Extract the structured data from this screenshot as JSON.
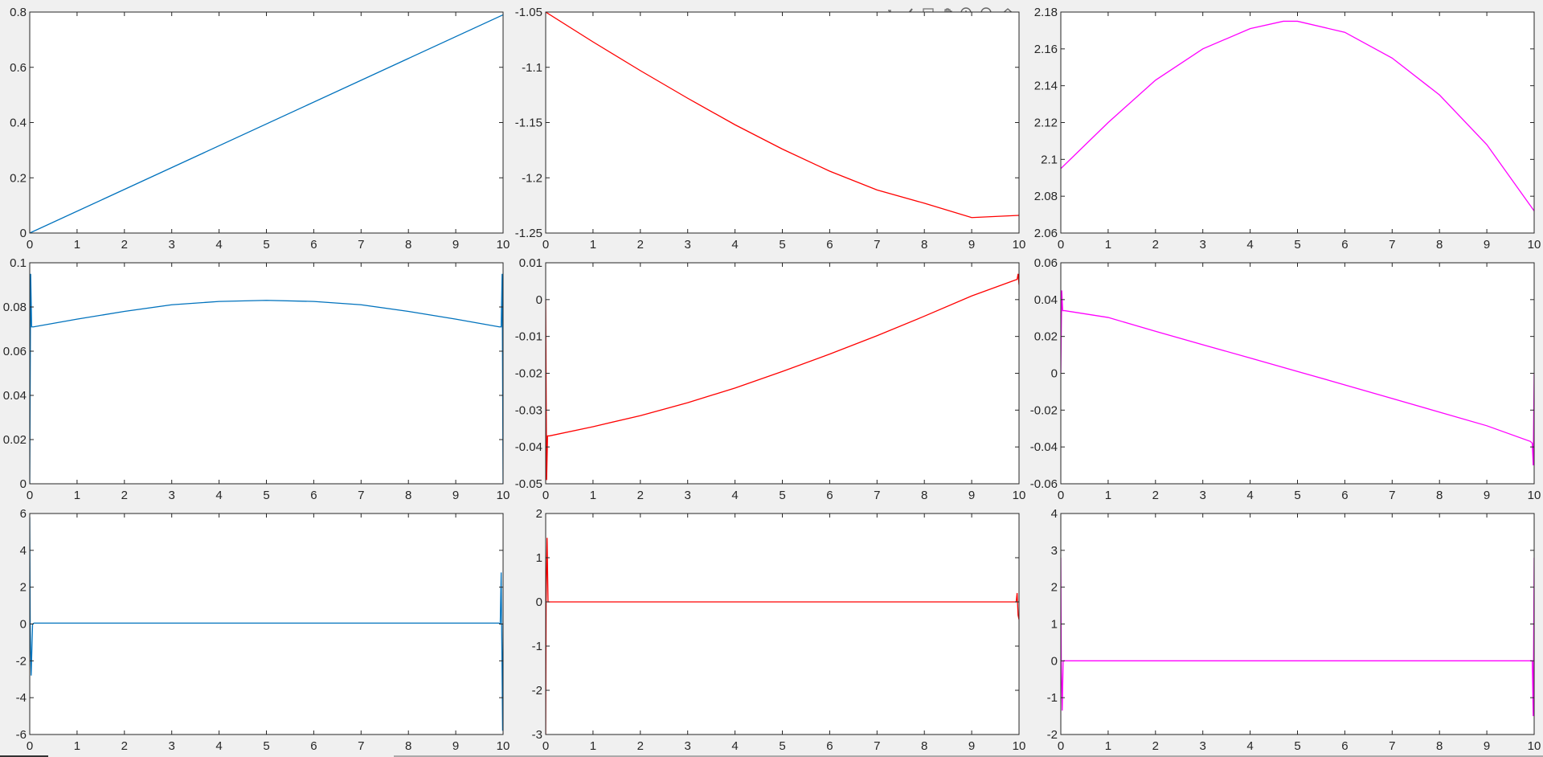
{
  "toolbar": {
    "items": [
      {
        "name": "export-icon"
      },
      {
        "name": "brush-icon"
      },
      {
        "name": "datatip-icon"
      },
      {
        "name": "pan-hand-icon"
      },
      {
        "name": "zoom-in-icon"
      },
      {
        "name": "zoom-out-icon"
      },
      {
        "name": "home-icon"
      }
    ]
  },
  "colors": {
    "blue": "#0072bd",
    "red": "#ff0000",
    "magenta": "#ff00ff",
    "axes": "#262626",
    "background": "#f0f0f0",
    "plot_area": "#ffffff"
  },
  "chart_data": [
    {
      "type": "line",
      "row": 1,
      "col": 1,
      "color": "#0072bd",
      "xlim": [
        0,
        10
      ],
      "ylim": [
        0,
        0.8
      ],
      "xticks": [
        0,
        1,
        2,
        3,
        4,
        5,
        6,
        7,
        8,
        9,
        10
      ],
      "xticklabels": [
        "0",
        "1",
        "2",
        "3",
        "4",
        "5",
        "6",
        "7",
        "8",
        "9",
        "10"
      ],
      "yticks": [
        0,
        0.2,
        0.4,
        0.6,
        0.8
      ],
      "yticklabels": [
        "0",
        "0.2",
        "0.4",
        "0.6",
        "0.8"
      ],
      "x": [
        0,
        10
      ],
      "y": [
        0,
        0.79
      ]
    },
    {
      "type": "line",
      "row": 1,
      "col": 2,
      "color": "#ff0000",
      "xlim": [
        0,
        10
      ],
      "ylim": [
        -1.25,
        -1.05
      ],
      "xticks": [
        0,
        1,
        2,
        3,
        4,
        5,
        6,
        7,
        8,
        9,
        10
      ],
      "xticklabels": [
        "0",
        "1",
        "2",
        "3",
        "4",
        "5",
        "6",
        "7",
        "8",
        "9",
        "10"
      ],
      "yticks": [
        -1.25,
        -1.2,
        -1.15,
        -1.1,
        -1.05
      ],
      "yticklabels": [
        "-1.25",
        "-1.2",
        "-1.15",
        "-1.1",
        "-1.05"
      ],
      "x": [
        0,
        1,
        2,
        3,
        4,
        5,
        6,
        7,
        8,
        9,
        10
      ],
      "y": [
        -1.05,
        -1.077,
        -1.103,
        -1.128,
        -1.152,
        -1.174,
        -1.194,
        -1.211,
        -1.223,
        -1.236,
        -1.234
      ]
    },
    {
      "type": "line",
      "row": 1,
      "col": 3,
      "color": "#ff00ff",
      "xlim": [
        0,
        10
      ],
      "ylim": [
        2.06,
        2.18
      ],
      "xticks": [
        0,
        1,
        2,
        3,
        4,
        5,
        6,
        7,
        8,
        9,
        10
      ],
      "xticklabels": [
        "0",
        "1",
        "2",
        "3",
        "4",
        "5",
        "6",
        "7",
        "8",
        "9",
        "10"
      ],
      "yticks": [
        2.06,
        2.08,
        2.1,
        2.12,
        2.14,
        2.16,
        2.18
      ],
      "yticklabels": [
        "2.06",
        "2.08",
        "2.1",
        "2.12",
        "2.14",
        "2.16",
        "2.18"
      ],
      "x": [
        0,
        1,
        2,
        3,
        4,
        4.7,
        5,
        6,
        7,
        8,
        9,
        10
      ],
      "y": [
        2.095,
        2.12,
        2.143,
        2.16,
        2.171,
        2.175,
        2.175,
        2.169,
        2.155,
        2.135,
        2.108,
        2.072
      ]
    },
    {
      "type": "line",
      "row": 2,
      "col": 1,
      "color": "#0072bd",
      "xlim": [
        0,
        10
      ],
      "ylim": [
        0,
        0.1
      ],
      "xticks": [
        0,
        1,
        2,
        3,
        4,
        5,
        6,
        7,
        8,
        9,
        10
      ],
      "xticklabels": [
        "0",
        "1",
        "2",
        "3",
        "4",
        "5",
        "6",
        "7",
        "8",
        "9",
        "10"
      ],
      "yticks": [
        0,
        0.02,
        0.04,
        0.06,
        0.08,
        0.1
      ],
      "yticklabels": [
        "0",
        "0.02",
        "0.04",
        "0.06",
        "0.08",
        "0.1"
      ],
      "x": [
        0,
        0.02,
        0.04,
        0.08,
        1,
        2,
        3,
        4,
        5,
        6,
        7,
        8,
        9,
        9.92,
        9.96,
        9.98,
        10
      ],
      "y": [
        0,
        0.095,
        0.071,
        0.071,
        0.0745,
        0.078,
        0.081,
        0.0825,
        0.083,
        0.0825,
        0.081,
        0.078,
        0.0745,
        0.071,
        0.071,
        0.095,
        0
      ]
    },
    {
      "type": "line",
      "row": 2,
      "col": 2,
      "color": "#ff0000",
      "xlim": [
        0,
        10
      ],
      "ylim": [
        -0.05,
        0.01
      ],
      "xticks": [
        0,
        1,
        2,
        3,
        4,
        5,
        6,
        7,
        8,
        9,
        10
      ],
      "xticklabels": [
        "0",
        "1",
        "2",
        "3",
        "4",
        "5",
        "6",
        "7",
        "8",
        "9",
        "10"
      ],
      "yticks": [
        -0.05,
        -0.04,
        -0.03,
        -0.02,
        -0.01,
        0,
        0.01
      ],
      "yticklabels": [
        "-0.05",
        "-0.04",
        "-0.03",
        "-0.02",
        "-0.01",
        "0",
        "0.01"
      ],
      "x": [
        0,
        0.02,
        0.04,
        0.08,
        1,
        2,
        3,
        4,
        5,
        6,
        7,
        8,
        9,
        9.96,
        9.98,
        10
      ],
      "y": [
        0,
        -0.049,
        -0.037,
        -0.037,
        -0.0345,
        -0.0315,
        -0.028,
        -0.024,
        -0.0195,
        -0.0148,
        -0.0098,
        -0.0045,
        0.001,
        0.0055,
        0.007,
        0.004
      ]
    },
    {
      "type": "line",
      "row": 2,
      "col": 3,
      "color": "#ff00ff",
      "xlim": [
        0,
        10
      ],
      "ylim": [
        -0.06,
        0.06
      ],
      "xticks": [
        0,
        1,
        2,
        3,
        4,
        5,
        6,
        7,
        8,
        9,
        10
      ],
      "xticklabels": [
        "0",
        "1",
        "2",
        "3",
        "4",
        "5",
        "6",
        "7",
        "8",
        "9",
        "10"
      ],
      "yticks": [
        -0.06,
        -0.04,
        -0.02,
        0,
        0.02,
        0.04,
        0.06
      ],
      "yticklabels": [
        "-0.06",
        "-0.04",
        "-0.02",
        "0",
        "0.02",
        "0.04",
        "0.06"
      ],
      "x": [
        0,
        0.02,
        0.04,
        0.08,
        1,
        2,
        3,
        4,
        5,
        6,
        7,
        9,
        9.92,
        9.96,
        9.98,
        10
      ],
      "y": [
        0,
        0.045,
        0.034,
        0.034,
        0.0303,
        0.0228,
        0.0155,
        0.0083,
        0.001,
        -0.0063,
        -0.0137,
        -0.0285,
        -0.037,
        -0.038,
        -0.05,
        0
      ]
    },
    {
      "type": "line",
      "row": 3,
      "col": 1,
      "color": "#0072bd",
      "xlim": [
        0,
        10
      ],
      "ylim": [
        -6,
        6
      ],
      "xticks": [
        0,
        1,
        2,
        3,
        4,
        5,
        6,
        7,
        8,
        9,
        10
      ],
      "xticklabels": [
        "0",
        "1",
        "2",
        "3",
        "4",
        "5",
        "6",
        "7",
        "8",
        "9",
        "10"
      ],
      "yticks": [
        -6,
        -4,
        -2,
        0,
        2,
        4,
        6
      ],
      "yticklabels": [
        "-6",
        "-4",
        "-2",
        "0",
        "2",
        "4",
        "6"
      ],
      "x": [
        0,
        0.01,
        0.03,
        0.06,
        0.09,
        9.91,
        9.94,
        9.96,
        9.99,
        10
      ],
      "y": [
        5.8,
        0,
        -2.8,
        0,
        0.05,
        0.05,
        0,
        2.8,
        -5.8,
        0
      ]
    },
    {
      "type": "line",
      "row": 3,
      "col": 2,
      "color": "#ff0000",
      "xlim": [
        0,
        10
      ],
      "ylim": [
        -3,
        2
      ],
      "xticks": [
        0,
        1,
        2,
        3,
        4,
        5,
        6,
        7,
        8,
        9,
        10
      ],
      "xticklabels": [
        "0",
        "1",
        "2",
        "3",
        "4",
        "5",
        "6",
        "7",
        "8",
        "9",
        "10"
      ],
      "yticks": [
        -3,
        -2,
        -1,
        0,
        1,
        2
      ],
      "yticklabels": [
        "-3",
        "-2",
        "-1",
        "0",
        "1",
        "2"
      ],
      "x": [
        0,
        0.01,
        0.03,
        0.05,
        0.08,
        9.94,
        9.96,
        9.98,
        10
      ],
      "y": [
        -3,
        0,
        1.45,
        0,
        0,
        0,
        0.2,
        -0.3,
        -0.4
      ]
    },
    {
      "type": "line",
      "row": 3,
      "col": 3,
      "color": "#ff00ff",
      "xlim": [
        0,
        10
      ],
      "ylim": [
        -2,
        4
      ],
      "xticks": [
        0,
        1,
        2,
        3,
        4,
        5,
        6,
        7,
        8,
        9,
        10
      ],
      "xticklabels": [
        "0",
        "1",
        "2",
        "3",
        "4",
        "5",
        "6",
        "7",
        "8",
        "9",
        "10"
      ],
      "yticks": [
        -2,
        -1,
        0,
        1,
        2,
        3,
        4
      ],
      "yticklabels": [
        "-2",
        "-1",
        "0",
        "1",
        "2",
        "3",
        "4"
      ],
      "x": [
        0,
        0.01,
        0.03,
        0.05,
        0.08,
        9.93,
        9.96,
        9.98,
        10
      ],
      "y": [
        2.8,
        0,
        -1.35,
        0,
        0,
        0,
        0,
        -1.5,
        2.8
      ]
    }
  ]
}
